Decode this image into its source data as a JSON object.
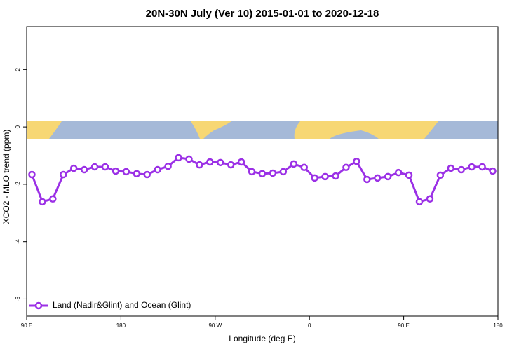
{
  "chart_data": {
    "type": "line",
    "title": "20N-30N July (Ver 10)   2015-01-01 to 2020-12-18",
    "x_label": "Longitude (deg E)",
    "y_label": "XCO2 - MLO trend (ppm)",
    "x": [
      95,
      105,
      115,
      125,
      135,
      145,
      155,
      165,
      175,
      185,
      195,
      205,
      215,
      225,
      235,
      245,
      255,
      265,
      275,
      285,
      295,
      305,
      315,
      325,
      335,
      345,
      355,
      365,
      375,
      385,
      395,
      405,
      415,
      425,
      435,
      445,
      455,
      465,
      475,
      485,
      495,
      505,
      515,
      525,
      535
    ],
    "series": [
      {
        "name": "Land (Nadir&Glint) and Ocean (Glint)",
        "color": "#9b30e6",
        "values": [
          -1.66,
          -2.61,
          -2.51,
          -1.66,
          -1.44,
          -1.49,
          -1.39,
          -1.39,
          -1.54,
          -1.56,
          -1.63,
          -1.66,
          -1.49,
          -1.37,
          -1.07,
          -1.12,
          -1.32,
          -1.22,
          -1.24,
          -1.32,
          -1.22,
          -1.56,
          -1.63,
          -1.61,
          -1.56,
          -1.29,
          -1.41,
          -1.78,
          -1.73,
          -1.71,
          -1.41,
          -1.2,
          -1.83,
          -1.78,
          -1.73,
          -1.59,
          -1.68,
          -2.61,
          -2.51,
          -1.68,
          -1.44,
          -1.49,
          -1.39,
          -1.39,
          -1.54
        ]
      }
    ],
    "xlim": [
      90,
      540
    ],
    "xticks": [
      {
        "value": 90,
        "label": "90 E"
      },
      180,
      {
        "value": 270,
        "label": "90 W"
      },
      {
        "value": 360,
        "label": "0"
      },
      {
        "value": 450,
        "label": "90 E"
      },
      {
        "value": 540,
        "label": "180"
      }
    ],
    "ylim": [
      -6.6,
      3.5
    ],
    "yticks": [
      -6,
      -4,
      -2,
      0,
      2
    ],
    "legend": "bottom-left"
  }
}
